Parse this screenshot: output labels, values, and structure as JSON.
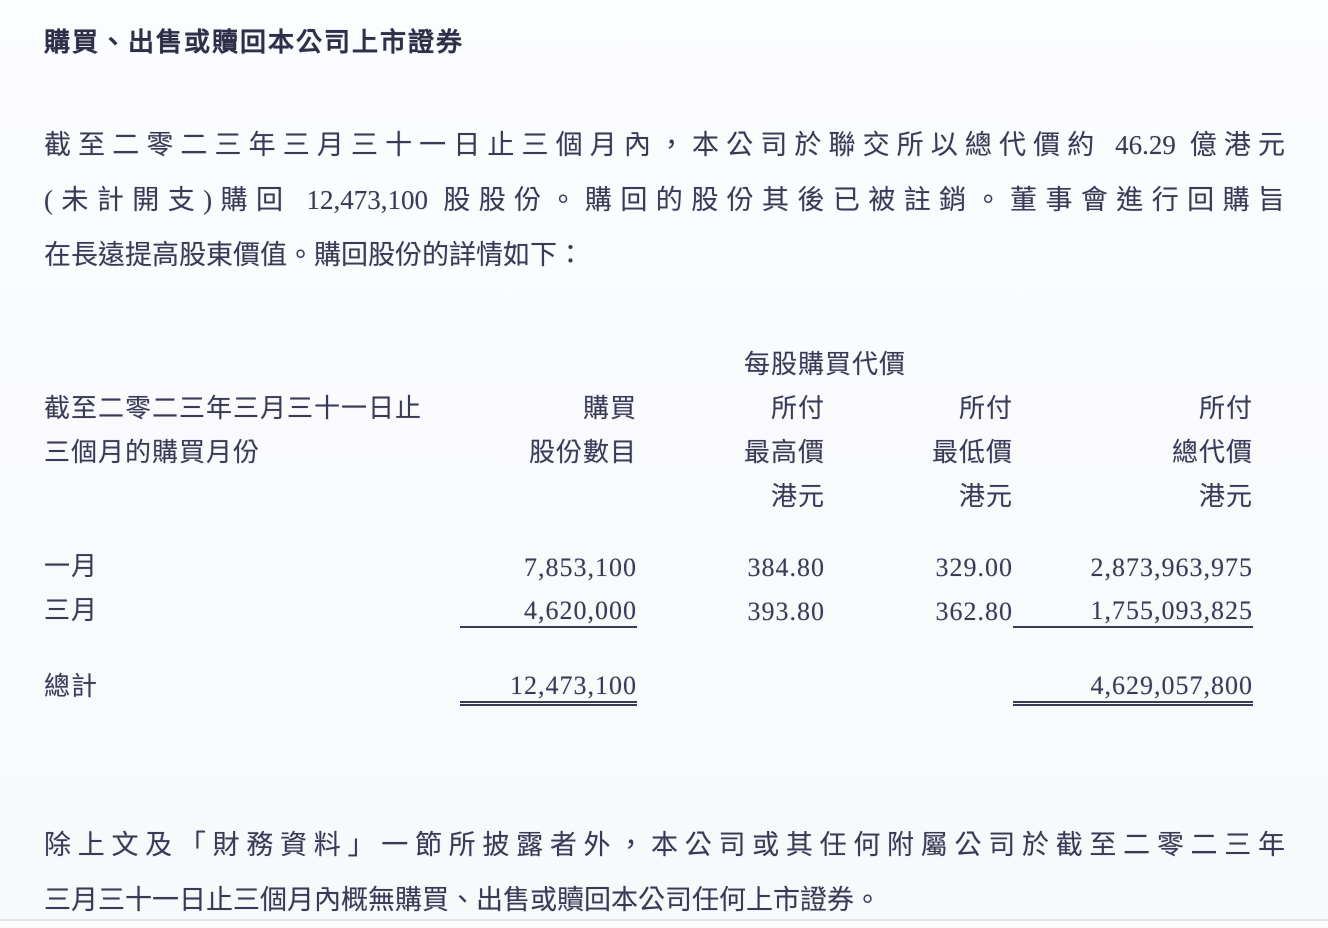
{
  "document": {
    "heading": "購買、出售或贖回本公司上市證券",
    "intro_lines": [
      "截至二零二三年三月三十一日止三個月內，本公司於聯交所以總代價約 46.29 億港元",
      "(未計開支)購回 12,473,100 股股份。購回的股份其後已被註銷。董事會進行回購旨",
      "在長遠提高股東價值。購回股份的詳情如下："
    ],
    "closing_lines": [
      "除上文及「財務資料」一節所披露者外，本公司或其任何附屬公司於截至二零二三年",
      "三月三十一日止三個月內概無購買、出售或贖回本公司任何上市證券。"
    ]
  },
  "table": {
    "price_span_header": "每股購買代價",
    "columns": {
      "month": [
        "截至二零二三年三月三十一日止",
        "三個月的購買月份"
      ],
      "shares": [
        "購買",
        "股份數目"
      ],
      "highest": [
        "所付",
        "最高價",
        "港元"
      ],
      "lowest": [
        "所付",
        "最低價",
        "港元"
      ],
      "total": [
        "所付",
        "總代價",
        "港元"
      ]
    },
    "rows": [
      {
        "month": "一月",
        "shares": "7,853,100",
        "highest": "384.80",
        "lowest": "329.00",
        "total": "2,873,963,975"
      },
      {
        "month": "三月",
        "shares": "4,620,000",
        "highest": "393.80",
        "lowest": "362.80",
        "total": "1,755,093,825"
      }
    ],
    "total_row": {
      "label": "總計",
      "shares": "12,473,100",
      "total": "4,629,057,800"
    }
  },
  "colors": {
    "text": "#3a3a57",
    "background": "#fafbfd",
    "divider": "#e0e4ec"
  }
}
